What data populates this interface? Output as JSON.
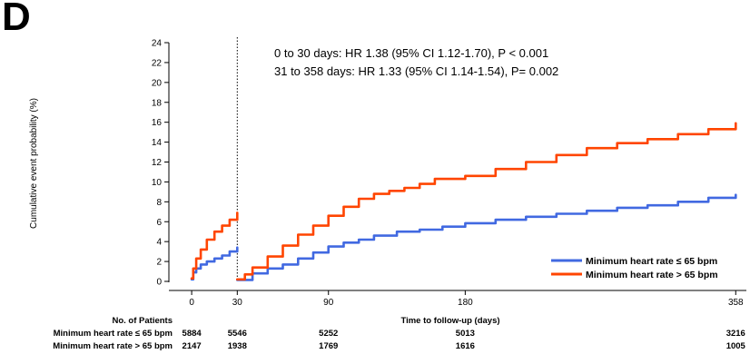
{
  "panel_label": "D",
  "chart_data": {
    "type": "line",
    "title": "",
    "xlabel": "Time to follow-up (days)",
    "ylabel": "Cumulative event probability (%)",
    "xlim": [
      -15,
      365
    ],
    "ylim": [
      0,
      24
    ],
    "x_ticks": [
      0,
      30,
      90,
      180,
      358
    ],
    "y_ticks": [
      0,
      2,
      4,
      6,
      8,
      10,
      12,
      14,
      16,
      18,
      20,
      22,
      24
    ],
    "landmark_day": 30,
    "grid": false,
    "legend_position": "bottom-right",
    "annotations": [
      "0 to 30 days: HR 1.38 (95% CI 1.12-1.70), P < 0.001",
      "31 to 358 days: HR  1.33 (95% CI 1.14-1.54), P= 0.002"
    ],
    "series": [
      {
        "name": "Minimum heart rate ≤ 65 bpm",
        "color": "#4169e1",
        "segments": [
          [
            [
              0,
              0.2
            ],
            [
              1,
              0.9
            ],
            [
              3,
              1.3
            ],
            [
              6,
              1.7
            ],
            [
              10,
              2.0
            ],
            [
              15,
              2.3
            ],
            [
              20,
              2.6
            ],
            [
              25,
              3.0
            ],
            [
              30,
              3.4
            ]
          ],
          [
            [
              30,
              0.15
            ],
            [
              40,
              0.8
            ],
            [
              50,
              1.3
            ],
            [
              60,
              1.7
            ],
            [
              70,
              2.3
            ],
            [
              80,
              2.9
            ],
            [
              90,
              3.5
            ],
            [
              100,
              3.9
            ],
            [
              110,
              4.2
            ],
            [
              120,
              4.6
            ],
            [
              135,
              5.0
            ],
            [
              150,
              5.2
            ],
            [
              165,
              5.5
            ],
            [
              180,
              5.85
            ],
            [
              200,
              6.2
            ],
            [
              220,
              6.5
            ],
            [
              240,
              6.8
            ],
            [
              260,
              7.1
            ],
            [
              280,
              7.4
            ],
            [
              300,
              7.65
            ],
            [
              320,
              8.0
            ],
            [
              340,
              8.4
            ],
            [
              358,
              8.7
            ]
          ]
        ]
      },
      {
        "name": "Minimum heart rate > 65 bpm",
        "color": "#ff4500",
        "segments": [
          [
            [
              0,
              0.3
            ],
            [
              1,
              1.3
            ],
            [
              3,
              2.3
            ],
            [
              6,
              3.2
            ],
            [
              10,
              4.2
            ],
            [
              15,
              5.0
            ],
            [
              20,
              5.6
            ],
            [
              25,
              6.2
            ],
            [
              30,
              6.9
            ]
          ],
          [
            [
              30,
              0.2
            ],
            [
              35,
              0.7
            ],
            [
              40,
              1.4
            ],
            [
              50,
              2.5
            ],
            [
              60,
              3.6
            ],
            [
              70,
              4.7
            ],
            [
              80,
              5.6
            ],
            [
              90,
              6.6
            ],
            [
              100,
              7.5
            ],
            [
              110,
              8.3
            ],
            [
              120,
              8.8
            ],
            [
              130,
              9.1
            ],
            [
              140,
              9.4
            ],
            [
              150,
              9.8
            ],
            [
              160,
              10.3
            ],
            [
              180,
              10.6
            ],
            [
              200,
              11.3
            ],
            [
              220,
              12.0
            ],
            [
              240,
              12.7
            ],
            [
              260,
              13.4
            ],
            [
              280,
              13.9
            ],
            [
              300,
              14.3
            ],
            [
              320,
              14.8
            ],
            [
              340,
              15.3
            ],
            [
              358,
              15.9
            ]
          ]
        ]
      }
    ],
    "risk_table": {
      "header": "No. of Patients",
      "rows": [
        {
          "label": "Minimum heart rate ≤ 65 bpm",
          "values": [
            "5884",
            "5546",
            "5252",
            "5013",
            "3216"
          ]
        },
        {
          "label": "Minimum heart rate > 65 bpm",
          "values": [
            "2147",
            "1938",
            "1769",
            "1616",
            "1005"
          ]
        }
      ]
    }
  }
}
